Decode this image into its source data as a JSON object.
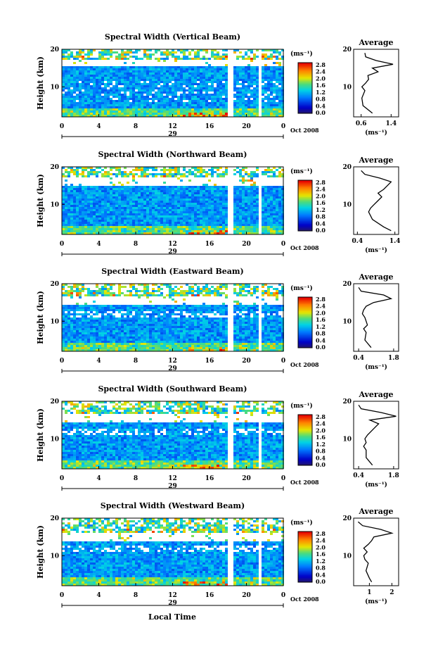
{
  "figure": {
    "common_xlabel": "Local Time",
    "common_ylabel": "Height (km)"
  },
  "chart_data": [
    {
      "type": "heatmap",
      "title": "Spectral Width (Vertical Beam)",
      "ylabel": "Height (km)",
      "x_ticks": [
        "0",
        "4",
        "8",
        "12",
        "16",
        "20",
        "0"
      ],
      "y_ticks": [
        "20",
        "10"
      ],
      "xlim": [
        0,
        24
      ],
      "ylim": [
        2,
        20
      ],
      "date_label": "29",
      "month_label": "Oct 2008",
      "colorbar": {
        "unit": "(ms⁻¹)",
        "ticks": [
          "2.8",
          "2.4",
          "2.0",
          "1.6",
          "1.2",
          "0.8",
          "0.4",
          "0.0"
        ],
        "range": [
          0.0,
          2.8
        ]
      },
      "data_gaps_hours": [
        [
          5.8,
          6.0
        ],
        [
          17.9,
          18.4
        ],
        [
          21.3,
          21.6
        ]
      ],
      "average_profile": {
        "title": "Average",
        "xlabel": "(ms⁻¹)",
        "x_ticks": [
          "0.6",
          "1.4"
        ],
        "y_ticks": [
          "20",
          "10"
        ],
        "xlim": [
          0.4,
          1.6
        ],
        "heights_km": [
          3,
          5,
          7,
          9,
          10,
          11,
          12,
          13,
          14,
          15,
          16,
          17,
          18,
          19
        ],
        "values": [
          0.9,
          0.65,
          0.62,
          0.7,
          0.62,
          0.72,
          0.8,
          0.78,
          1.05,
          0.9,
          1.45,
          1.0,
          0.72,
          0.7
        ]
      }
    },
    {
      "type": "heatmap",
      "title": "Spectral Width (Northward Beam)",
      "ylabel": "Height (km)",
      "x_ticks": [
        "0",
        "4",
        "8",
        "12",
        "16",
        "20",
        "0"
      ],
      "y_ticks": [
        "20",
        "10"
      ],
      "xlim": [
        0,
        24
      ],
      "ylim": [
        2,
        20
      ],
      "date_label": "29",
      "month_label": "Oct 2008",
      "colorbar": {
        "unit": "(ms⁻¹)",
        "ticks": [
          "2.8",
          "2.4",
          "2.0",
          "1.6",
          "1.2",
          "0.8",
          "0.4",
          "0.0"
        ],
        "range": [
          0.0,
          2.8
        ]
      },
      "data_gaps_hours": [
        [
          5.8,
          6.0
        ],
        [
          17.9,
          18.4
        ],
        [
          21.3,
          21.6
        ]
      ],
      "average_profile": {
        "title": "Average",
        "xlabel": "(ms⁻¹)",
        "x_ticks": [
          "0.4",
          "1.4"
        ],
        "y_ticks": [
          "20",
          "10"
        ],
        "xlim": [
          0.3,
          1.5
        ],
        "heights_km": [
          3,
          4,
          6,
          8,
          9,
          10,
          11,
          12,
          13,
          14,
          15,
          16,
          17,
          18,
          19
        ],
        "values": [
          1.3,
          1.1,
          0.8,
          0.7,
          0.75,
          0.85,
          0.95,
          1.05,
          0.95,
          1.1,
          1.2,
          1.3,
          1.0,
          0.6,
          0.5
        ]
      }
    },
    {
      "type": "heatmap",
      "title": "Spectral Width (Eastward Beam)",
      "ylabel": "Height (km)",
      "x_ticks": [
        "0",
        "4",
        "8",
        "12",
        "16",
        "20",
        "0"
      ],
      "y_ticks": [
        "20",
        "10"
      ],
      "xlim": [
        0,
        24
      ],
      "ylim": [
        2,
        20
      ],
      "date_label": "29",
      "month_label": "Oct 2008",
      "colorbar": {
        "unit": "(ms⁻¹)",
        "ticks": [
          "2.8",
          "2.4",
          "2.0",
          "1.6",
          "1.2",
          "0.8",
          "0.4",
          "0.0"
        ],
        "range": [
          0.0,
          2.8
        ]
      },
      "data_gaps_hours": [
        [
          5.8,
          6.0
        ],
        [
          17.9,
          18.4
        ],
        [
          21.3,
          21.6
        ]
      ],
      "average_profile": {
        "title": "Average",
        "xlabel": "(ms⁻¹)",
        "x_ticks": [
          "0.4",
          "1.8"
        ],
        "y_ticks": [
          "20",
          "10"
        ],
        "xlim": [
          0.2,
          2.0
        ],
        "heights_km": [
          3,
          5,
          7,
          8,
          9,
          10,
          11,
          12,
          13,
          14,
          15,
          16,
          17,
          18,
          19
        ],
        "values": [
          0.9,
          0.65,
          0.7,
          0.6,
          0.75,
          0.7,
          0.65,
          0.55,
          0.6,
          0.7,
          1.0,
          1.7,
          1.4,
          0.5,
          0.4
        ]
      }
    },
    {
      "type": "heatmap",
      "title": "Spectral Width (Southward Beam)",
      "ylabel": "Height (km)",
      "x_ticks": [
        "0",
        "4",
        "8",
        "12",
        "16",
        "20",
        "0"
      ],
      "y_ticks": [
        "20",
        "10"
      ],
      "xlim": [
        0,
        24
      ],
      "ylim": [
        2,
        20
      ],
      "date_label": "29",
      "month_label": "Oct 2008",
      "colorbar": {
        "unit": "(ms⁻¹)",
        "ticks": [
          "2.8",
          "2.4",
          "2.0",
          "1.6",
          "1.2",
          "0.8",
          "0.4",
          "0.0"
        ],
        "range": [
          0.0,
          2.8
        ]
      },
      "data_gaps_hours": [
        [
          5.8,
          6.0
        ],
        [
          17.9,
          18.4
        ],
        [
          21.3,
          21.6
        ]
      ],
      "average_profile": {
        "title": "Average",
        "xlabel": "(ms⁻¹)",
        "x_ticks": [
          "0.4",
          "1.8"
        ],
        "y_ticks": [
          "20",
          "10"
        ],
        "xlim": [
          0.2,
          2.0
        ],
        "heights_km": [
          3,
          5,
          7,
          8,
          9,
          10,
          11,
          12,
          13,
          14,
          15,
          16,
          17,
          18,
          19
        ],
        "values": [
          0.95,
          0.7,
          0.7,
          0.6,
          0.7,
          0.65,
          0.75,
          0.9,
          1.05,
          1.2,
          0.85,
          1.9,
          1.3,
          0.5,
          0.4
        ]
      }
    },
    {
      "type": "heatmap",
      "title": "Spectral Width (Westward Beam)",
      "ylabel": "Height (km)",
      "x_ticks": [
        "0",
        "4",
        "8",
        "12",
        "16",
        "20",
        "0"
      ],
      "y_ticks": [
        "20",
        "10"
      ],
      "xlim": [
        0,
        24
      ],
      "ylim": [
        2,
        20
      ],
      "date_label": "29",
      "month_label": "Oct 2008",
      "colorbar": {
        "unit": "(ms⁻¹)",
        "ticks": [
          "2.8",
          "2.4",
          "2.0",
          "1.6",
          "1.2",
          "0.8",
          "0.4",
          "0.0"
        ],
        "range": [
          0.0,
          2.8
        ]
      },
      "data_gaps_hours": [
        [
          5.8,
          6.0
        ],
        [
          17.9,
          18.4
        ],
        [
          21.3,
          21.6
        ]
      ],
      "average_profile": {
        "title": "Average",
        "xlabel": "(ms⁻¹)",
        "x_ticks": [
          "1",
          "2"
        ],
        "y_ticks": [
          "20",
          "10"
        ],
        "xlim": [
          0.3,
          2.3
        ],
        "heights_km": [
          3,
          4,
          6,
          8,
          9,
          10,
          11,
          12,
          13,
          14,
          15,
          16,
          17,
          18,
          19
        ],
        "values": [
          1.1,
          1.0,
          0.85,
          0.95,
          0.8,
          0.75,
          0.9,
          0.75,
          0.95,
          1.1,
          1.2,
          2.0,
          1.5,
          0.7,
          0.5
        ]
      }
    }
  ]
}
